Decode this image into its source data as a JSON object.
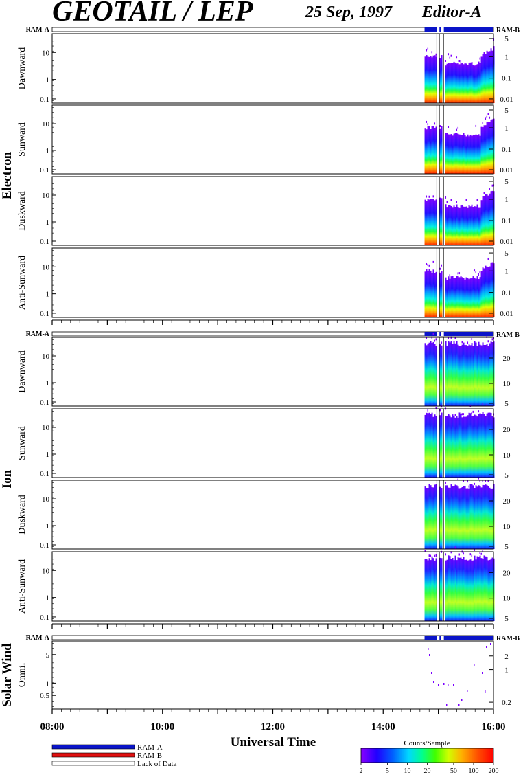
{
  "header": {
    "title": "GEOTAIL / LEP",
    "date": "25 Sep, 1997",
    "editor": "Editor-A"
  },
  "mode_labels": {
    "ram_a": "RAM-A",
    "ram_b": "RAM-B"
  },
  "colors": {
    "ram_a": "#0a14c8",
    "ram_b": "#e01010",
    "lack_of_data": "#ffffff",
    "colorbar": [
      "#8a00ff",
      "#0000ff",
      "#0080ff",
      "#00e0ff",
      "#00ff80",
      "#60ff00",
      "#e0ff00",
      "#ffb000",
      "#ff5000",
      "#ff0000"
    ]
  },
  "groups": [
    {
      "name": "Electron",
      "panels": [
        {
          "label": "Dawnward"
        },
        {
          "label": "Sunward"
        },
        {
          "label": "Duskward"
        },
        {
          "label": "Anti-Sunward"
        }
      ]
    },
    {
      "name": "Ion",
      "panels": [
        {
          "label": "Dawnward"
        },
        {
          "label": "Sunward"
        },
        {
          "label": "Duskward"
        },
        {
          "label": "Anti-Sunward"
        }
      ]
    },
    {
      "name": "Solar Wind",
      "panels": [
        {
          "label": "Omni."
        }
      ]
    }
  ],
  "chart_data": {
    "type": "heatmap",
    "xlabel": "Universal Time",
    "x_ticks": [
      "08:00",
      "10:00",
      "12:00",
      "14:00",
      "16:00"
    ],
    "x_range_hours": [
      8,
      16
    ],
    "data_interval_hours": [
      14.75,
      16.0
    ],
    "data_gaps_hours": [
      [
        14.97,
        15.02
      ],
      [
        15.05,
        15.1
      ]
    ],
    "mode_bar": {
      "mode": "RAM-A",
      "start_hours": 14.75,
      "end_hours": 16.0
    },
    "left_axis": {
      "scale": "log",
      "ticks": [
        "0.1",
        "1",
        "10"
      ]
    },
    "solar_left_axis": {
      "scale": "log",
      "ticks": [
        "0.5",
        "1",
        "5"
      ]
    },
    "electron_right_axis": {
      "scale": "log",
      "ticks": [
        "0.01",
        "0.1",
        "1",
        "5"
      ]
    },
    "ion_right_axis": {
      "ticks": [
        "5",
        "10",
        "20"
      ]
    },
    "solar_right_axis": {
      "scale": "log",
      "ticks": [
        "0.2",
        "1",
        "2"
      ]
    },
    "colorbar": {
      "title": "Counts/Sample",
      "scale": "log",
      "range": [
        2,
        200
      ],
      "ticks": [
        "2",
        "5",
        "10",
        "20",
        "50",
        "100",
        "200"
      ]
    },
    "legend": [
      {
        "label": "RAM-A"
      },
      {
        "label": "RAM-B"
      },
      {
        "label": "Lack of Data"
      }
    ]
  }
}
